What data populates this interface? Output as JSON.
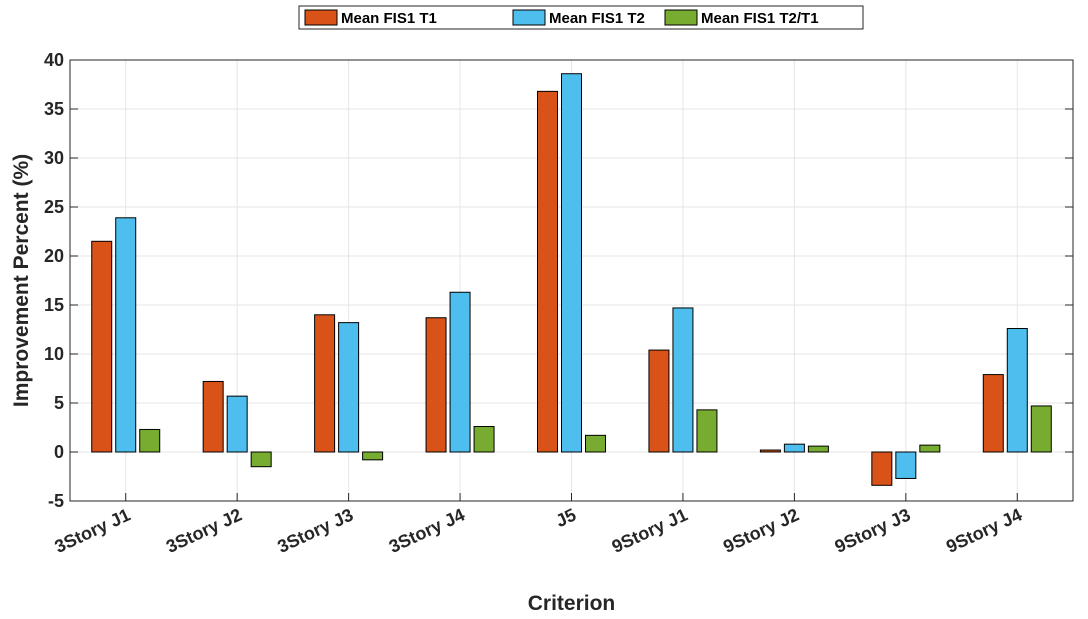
{
  "chart_data": {
    "type": "bar",
    "title": "",
    "xlabel": "Criterion",
    "ylabel": "Improvement Percent (%)",
    "ylim": [
      -5,
      40
    ],
    "yticks": [
      -5,
      0,
      5,
      10,
      15,
      20,
      25,
      30,
      35,
      40
    ],
    "grid": true,
    "legend_position": "top-center",
    "categories": [
      "3Story J1",
      "3Story J2",
      "3Story J3",
      "3Story J4",
      "J5",
      "9Story J1",
      "9Story J2",
      "9Story J3",
      "9Story J4"
    ],
    "series": [
      {
        "name": "Mean FIS1 T1",
        "color": "#D95319",
        "values": [
          21.5,
          7.2,
          14.0,
          13.7,
          36.8,
          10.4,
          0.2,
          -3.4,
          7.9
        ]
      },
      {
        "name": "Mean FIS1 T2",
        "color": "#4DBEEE",
        "values": [
          23.9,
          5.7,
          13.2,
          16.3,
          38.6,
          14.7,
          0.8,
          -2.7,
          12.6
        ]
      },
      {
        "name": "Mean FIS1 T2/T1",
        "color": "#77AC30",
        "values": [
          2.3,
          -1.5,
          -0.8,
          2.6,
          1.7,
          4.3,
          0.6,
          0.7,
          4.7
        ]
      }
    ]
  }
}
